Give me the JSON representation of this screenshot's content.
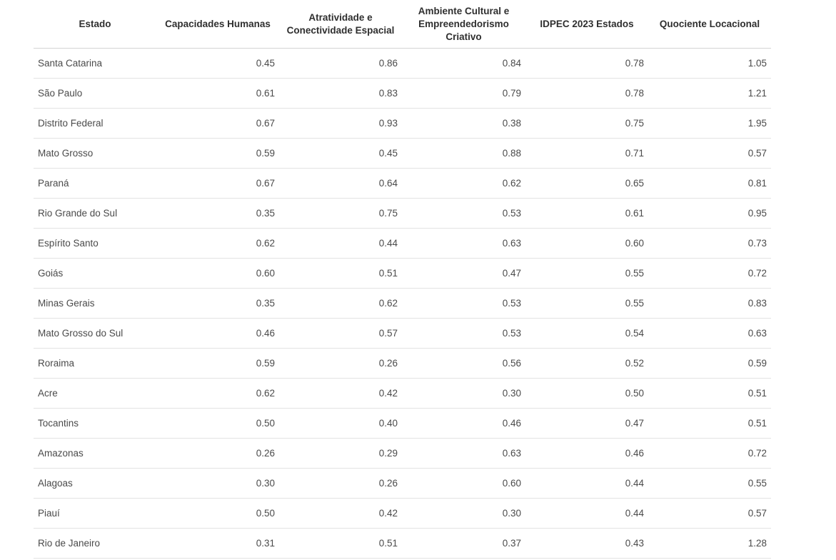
{
  "table": {
    "columns": [
      "Estado",
      "Capacidades Humanas",
      "Atratividade e Conectividade Espacial",
      "Ambiente Cultural e Empreendedorismo Criativo",
      "IDPEC 2023 Estados",
      "Quociente Locacional"
    ],
    "rows": [
      [
        "Santa Catarina",
        "0.45",
        "0.86",
        "0.84",
        "0.78",
        "1.05"
      ],
      [
        "São Paulo",
        "0.61",
        "0.83",
        "0.79",
        "0.78",
        "1.21"
      ],
      [
        "Distrito Federal",
        "0.67",
        "0.93",
        "0.38",
        "0.75",
        "1.95"
      ],
      [
        "Mato Grosso",
        "0.59",
        "0.45",
        "0.88",
        "0.71",
        "0.57"
      ],
      [
        "Paraná",
        "0.67",
        "0.64",
        "0.62",
        "0.65",
        "0.81"
      ],
      [
        "Rio Grande do Sul",
        "0.35",
        "0.75",
        "0.53",
        "0.61",
        "0.95"
      ],
      [
        "Espírito Santo",
        "0.62",
        "0.44",
        "0.63",
        "0.60",
        "0.73"
      ],
      [
        "Goiás",
        "0.60",
        "0.51",
        "0.47",
        "0.55",
        "0.72"
      ],
      [
        "Minas Gerais",
        "0.35",
        "0.62",
        "0.53",
        "0.55",
        "0.83"
      ],
      [
        "Mato Grosso do Sul",
        "0.46",
        "0.57",
        "0.53",
        "0.54",
        "0.63"
      ],
      [
        "Roraima",
        "0.59",
        "0.26",
        "0.56",
        "0.52",
        "0.59"
      ],
      [
        "Acre",
        "0.62",
        "0.42",
        "0.30",
        "0.50",
        "0.51"
      ],
      [
        "Tocantins",
        "0.50",
        "0.40",
        "0.46",
        "0.47",
        "0.51"
      ],
      [
        "Amazonas",
        "0.26",
        "0.29",
        "0.63",
        "0.46",
        "0.72"
      ],
      [
        "Alagoas",
        "0.30",
        "0.26",
        "0.60",
        "0.44",
        "0.55"
      ],
      [
        "Piauí",
        "0.50",
        "0.42",
        "0.30",
        "0.44",
        "0.57"
      ],
      [
        "Rio de Janeiro",
        "0.31",
        "0.51",
        "0.37",
        "0.43",
        "1.28"
      ]
    ]
  }
}
